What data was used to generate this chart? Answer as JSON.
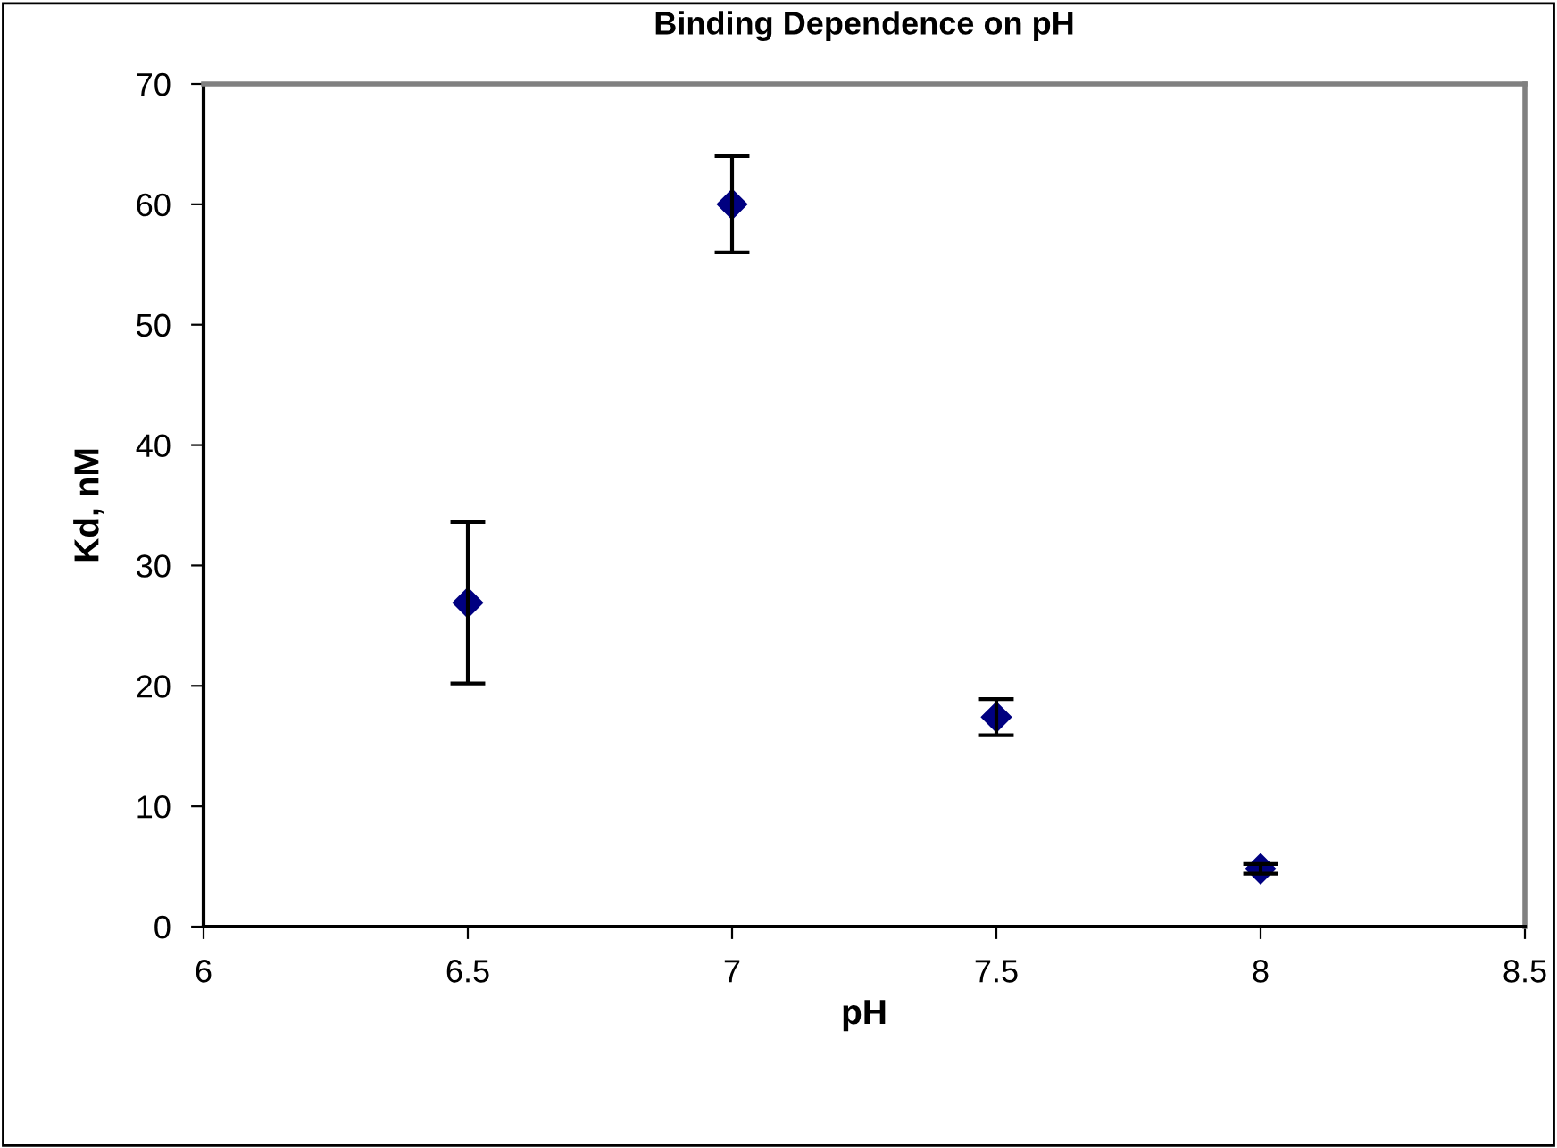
{
  "chart_data": {
    "type": "scatter",
    "title": "Binding Dependence on pH",
    "xlabel": "pH",
    "ylabel": "Kd, nM",
    "x": [
      6.5,
      7,
      7.5,
      8
    ],
    "series": [
      {
        "color": "#000080",
        "values": [
          26.9,
          60,
          17.4,
          4.8
        ],
        "errors": [
          6.7,
          4,
          1.5,
          0.4
        ]
      }
    ],
    "marker": "diamond",
    "xlim": [
      6,
      8.5
    ],
    "xticks": [
      6,
      6.5,
      7,
      7.5,
      8,
      8.5
    ],
    "ylim": [
      0,
      70
    ],
    "yticks": [
      0,
      10,
      20,
      30,
      40,
      50,
      60,
      70
    ],
    "grid": false,
    "legend": false
  }
}
